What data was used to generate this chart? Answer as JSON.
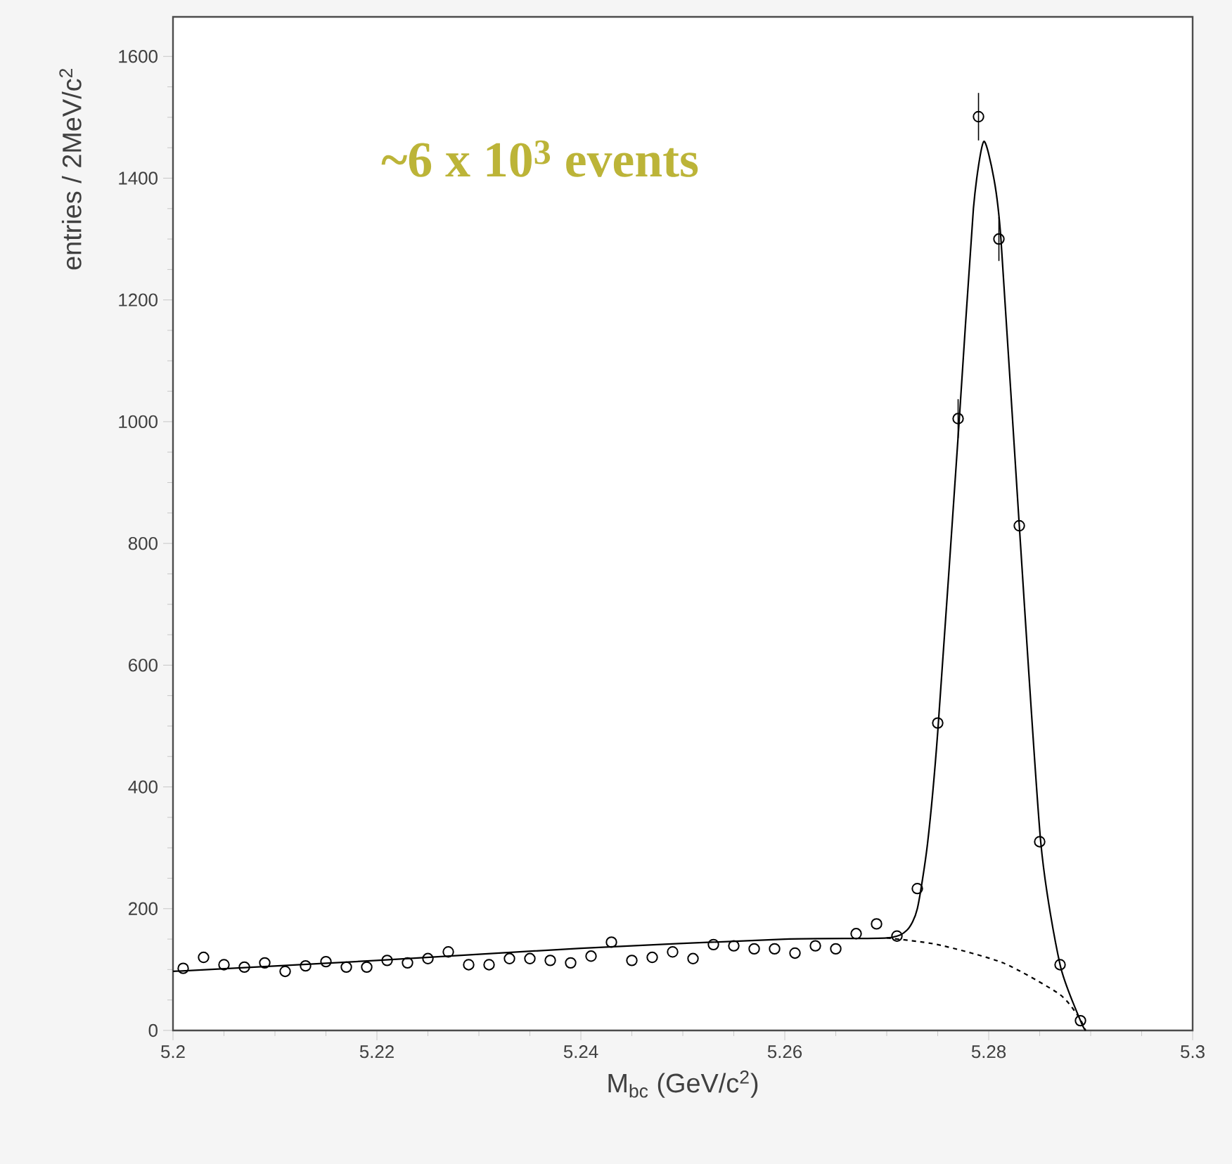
{
  "chart_data": {
    "type": "scatter",
    "xlabel": "M$_{bc}$ (GeV/c$^{2}$)",
    "ylabel": "entries / 2MeV/c$^{2}$",
    "annotations": [
      "~6 x 10$^{3}$ events"
    ],
    "xlim": [
      5.2,
      5.3
    ],
    "ylim": [
      0,
      1665
    ],
    "xticks": [
      5.2,
      5.22,
      5.24,
      5.26,
      5.28,
      5.3
    ],
    "yticks": [
      0,
      200,
      400,
      600,
      800,
      1000,
      1200,
      1400,
      1600
    ],
    "grid": false,
    "series": [
      {
        "color": "#000000",
        "marker": "circle",
        "x": [
          5.201,
          5.203,
          5.205,
          5.207,
          5.209,
          5.211,
          5.213,
          5.215,
          5.217,
          5.219,
          5.221,
          5.223,
          5.225,
          5.227,
          5.229,
          5.231,
          5.233,
          5.235,
          5.237,
          5.239,
          5.241,
          5.243,
          5.245,
          5.247,
          5.249,
          5.251,
          5.253,
          5.255,
          5.257,
          5.259,
          5.261,
          5.263,
          5.265,
          5.267,
          5.269,
          5.271,
          5.273,
          5.275,
          5.277,
          5.279,
          5.281,
          5.283,
          5.285,
          5.287,
          5.289
        ],
        "values": [
          102,
          120,
          108,
          104,
          111,
          97,
          106,
          113,
          104,
          104,
          115,
          111,
          118,
          129,
          108,
          108,
          118,
          118,
          115,
          111,
          122,
          145,
          115,
          120,
          129,
          118,
          141,
          139,
          134,
          134,
          127,
          139,
          134,
          159,
          175,
          155,
          233,
          505,
          1005,
          1501,
          1300,
          829,
          310,
          108,
          16
        ],
        "errors": [
          null,
          null,
          null,
          null,
          null,
          null,
          null,
          null,
          null,
          null,
          null,
          null,
          null,
          null,
          null,
          null,
          null,
          null,
          null,
          null,
          null,
          null,
          null,
          null,
          null,
          null,
          null,
          null,
          null,
          null,
          null,
          null,
          null,
          null,
          null,
          null,
          null,
          null,
          32,
          39,
          36,
          null,
          null,
          null,
          null
        ]
      },
      {
        "type": "line",
        "color": "#000000",
        "line_style": "solid",
        "x": [
          5.2,
          5.22,
          5.24,
          5.26,
          5.27,
          5.272,
          5.273,
          5.274,
          5.275,
          5.2771,
          5.2785,
          5.2795,
          5.2805,
          5.2812,
          5.283,
          5.2851,
          5.287,
          5.289,
          5.2895
        ],
        "values": [
          97,
          115,
          135,
          150,
          152,
          165,
          200,
          307,
          490,
          1000,
          1350,
          1460,
          1400,
          1300,
          829,
          310,
          108,
          16,
          0
        ]
      },
      {
        "type": "line",
        "color": "#000000",
        "line_style": "dashed",
        "x": [
          5.27,
          5.275,
          5.2814,
          5.2869,
          5.2888,
          5.2895
        ],
        "values": [
          152,
          141,
          111,
          60,
          23,
          0
        ]
      }
    ]
  }
}
